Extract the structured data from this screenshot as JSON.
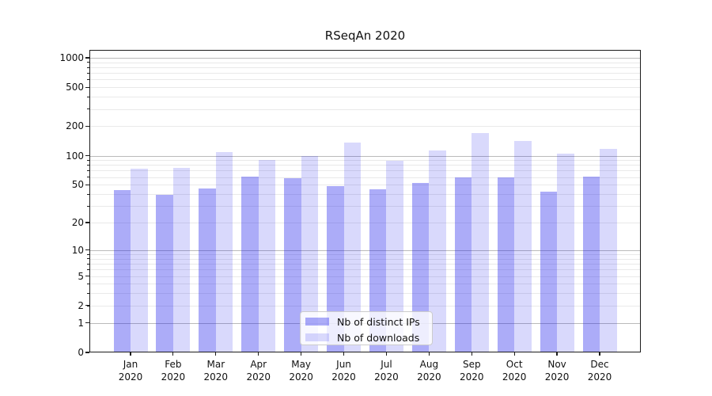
{
  "title": "RSeqAn 2020",
  "chart_data": {
    "type": "bar",
    "title": "RSeqAn 2020",
    "categories": [
      "Jan",
      "Feb",
      "Mar",
      "Apr",
      "May",
      "Jun",
      "Jul",
      "Aug",
      "Sep",
      "Oct",
      "Nov",
      "Dec"
    ],
    "xtick_year": "2020",
    "series": [
      {
        "name": "Nb of distinct IPs",
        "color": "rgba(30,30,235,0.37)",
        "values": [
          44,
          39,
          46,
          61,
          59,
          48,
          45,
          52,
          60,
          60,
          42,
          61
        ]
      },
      {
        "name": "Nb of downloads",
        "color": "rgba(30,30,235,0.17)",
        "values": [
          73,
          75,
          108,
          91,
          99,
          135,
          89,
          113,
          170,
          141,
          105,
          117
        ]
      }
    ],
    "yscale": "log1p",
    "yticks": [
      0,
      1,
      2,
      5,
      10,
      20,
      50,
      100,
      200,
      500,
      1000
    ],
    "ylim": [
      0,
      1200
    ],
    "grid": true,
    "legend_position": "lower center",
    "colors": {
      "grid_major": "#bababa",
      "grid_minor": "#e9e9e9",
      "spine": "#1c1c1c",
      "text": "#111111",
      "legend_border": "#cccccc",
      "background": "#ffffff"
    }
  }
}
